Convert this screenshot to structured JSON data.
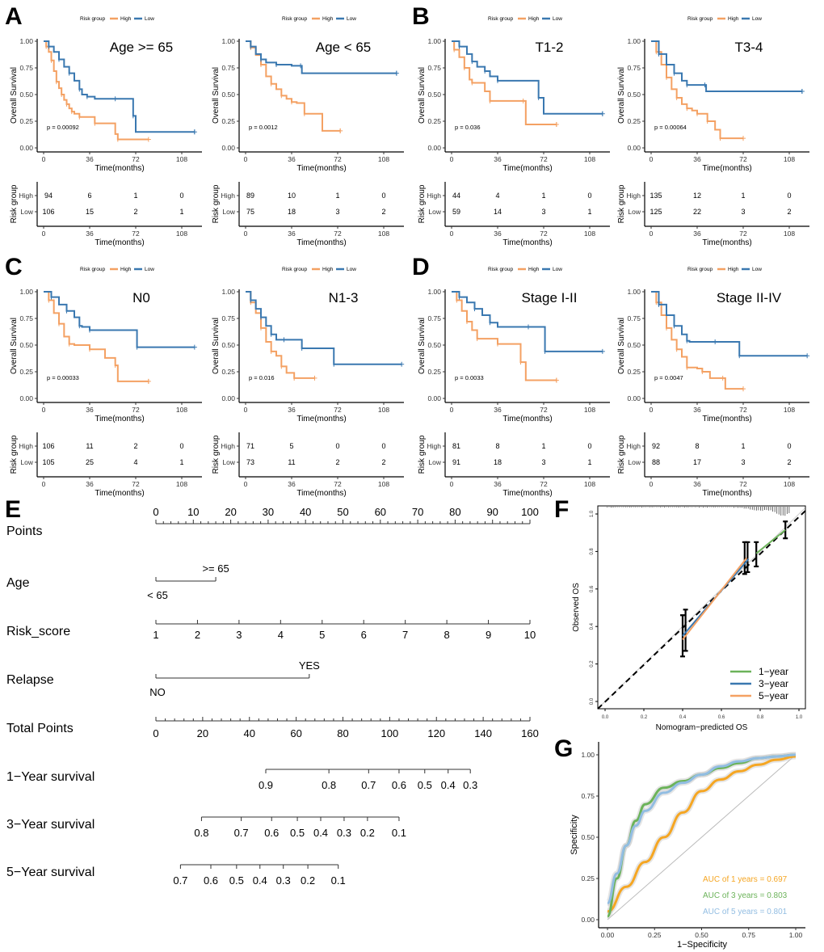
{
  "panel_labels": [
    "A",
    "B",
    "C",
    "D",
    "E",
    "F",
    "G"
  ],
  "colors": {
    "high": "#F4A163",
    "low": "#3A78B0",
    "high_text": "#F4A163",
    "low_text": "#4C86BE",
    "auc1": "#F5A623",
    "auc3": "#6CB35A",
    "auc5": "#92BDE2",
    "grey": "#BBBBBB"
  },
  "km_common": {
    "legend_title": "Risk group",
    "legend_items": [
      "High",
      "Low"
    ],
    "ylabel": "Overall Survival",
    "xlabel": "Time(months)",
    "yticks": [
      "0.00",
      "0.25",
      "0.50",
      "0.75",
      "1.00"
    ],
    "xticks": [
      "0",
      "36",
      "72",
      "108"
    ],
    "risk_ylabel": "Risk group",
    "risk_rows": [
      "High",
      "Low"
    ]
  },
  "chart_data": [
    {
      "type": "line",
      "panel": "A",
      "title": "Age >= 65",
      "p_value": "p = 0.00092",
      "xlim": [
        0,
        116
      ],
      "ylim": [
        0,
        1
      ],
      "series": [
        {
          "name": "High",
          "x": [
            0,
            2,
            4,
            6,
            8,
            10,
            12,
            14,
            16,
            18,
            20,
            22,
            24,
            28,
            32,
            40,
            56,
            58,
            82
          ],
          "y": [
            1,
            0.95,
            0.9,
            0.82,
            0.72,
            0.62,
            0.56,
            0.5,
            0.45,
            0.41,
            0.37,
            0.34,
            0.32,
            0.29,
            0.29,
            0.23,
            0.13,
            0.08,
            0.08
          ]
        },
        {
          "name": "Low",
          "x": [
            0,
            4,
            8,
            12,
            16,
            20,
            24,
            28,
            30,
            34,
            40,
            56,
            66,
            70,
            72,
            118
          ],
          "y": [
            1,
            0.95,
            0.9,
            0.83,
            0.76,
            0.7,
            0.63,
            0.55,
            0.5,
            0.48,
            0.46,
            0.46,
            0.46,
            0.3,
            0.15,
            0.15
          ]
        }
      ],
      "risk_table": {
        "High": [
          94,
          6,
          1,
          0
        ],
        "Low": [
          106,
          15,
          2,
          1
        ]
      }
    },
    {
      "type": "line",
      "panel": "A",
      "title": "Age < 65",
      "p_value": "p = 0.0012",
      "xlim": [
        0,
        116
      ],
      "ylim": [
        0,
        1
      ],
      "series": [
        {
          "name": "High",
          "x": [
            0,
            4,
            8,
            12,
            16,
            20,
            24,
            28,
            32,
            36,
            40,
            46,
            60,
            74
          ],
          "y": [
            1,
            0.94,
            0.87,
            0.78,
            0.67,
            0.6,
            0.55,
            0.49,
            0.46,
            0.43,
            0.42,
            0.32,
            0.16,
            0.16
          ]
        },
        {
          "name": "Low",
          "x": [
            0,
            4,
            8,
            12,
            16,
            24,
            36,
            43,
            44,
            118
          ],
          "y": [
            1,
            0.95,
            0.88,
            0.83,
            0.8,
            0.78,
            0.77,
            0.77,
            0.7,
            0.7
          ]
        }
      ],
      "risk_table": {
        "High": [
          89,
          10,
          1,
          0
        ],
        "Low": [
          75,
          18,
          3,
          2
        ]
      }
    },
    {
      "type": "line",
      "panel": "B",
      "title": "T1-2",
      "p_value": "p = 0.036",
      "xlim": [
        0,
        116
      ],
      "ylim": [
        0,
        1
      ],
      "series": [
        {
          "name": "High",
          "x": [
            0,
            2,
            6,
            10,
            14,
            16,
            26,
            30,
            32,
            56,
            58,
            82
          ],
          "y": [
            1,
            0.92,
            0.85,
            0.75,
            0.64,
            0.61,
            0.53,
            0.44,
            0.44,
            0.44,
            0.22,
            0.22
          ]
        },
        {
          "name": "Low",
          "x": [
            0,
            6,
            12,
            16,
            20,
            26,
            30,
            36,
            60,
            68,
            72,
            118
          ],
          "y": [
            1,
            0.95,
            0.88,
            0.81,
            0.76,
            0.72,
            0.67,
            0.63,
            0.63,
            0.47,
            0.32,
            0.32
          ]
        }
      ],
      "risk_table": {
        "High": [
          44,
          4,
          1,
          0
        ],
        "Low": [
          59,
          14,
          3,
          1
        ]
      }
    },
    {
      "type": "line",
      "panel": "B",
      "title": "T3-4",
      "p_value": "p = 0.00064",
      "xlim": [
        0,
        116
      ],
      "ylim": [
        0,
        1
      ],
      "series": [
        {
          "name": "High",
          "x": [
            0,
            4,
            8,
            12,
            16,
            20,
            24,
            28,
            32,
            36,
            40,
            44,
            50,
            54,
            56,
            72
          ],
          "y": [
            1,
            0.9,
            0.78,
            0.66,
            0.55,
            0.47,
            0.41,
            0.37,
            0.35,
            0.32,
            0.32,
            0.25,
            0.17,
            0.09,
            0.09,
            0.09
          ]
        },
        {
          "name": "Low",
          "x": [
            0,
            6,
            12,
            18,
            24,
            28,
            36,
            42,
            43,
            118
          ],
          "y": [
            1,
            0.88,
            0.78,
            0.7,
            0.63,
            0.59,
            0.59,
            0.59,
            0.53,
            0.53
          ]
        }
      ],
      "risk_table": {
        "High": [
          135,
          12,
          1,
          0
        ],
        "Low": [
          125,
          22,
          3,
          2
        ]
      }
    },
    {
      "type": "line",
      "panel": "C",
      "title": "N0",
      "p_value": "p = 0.00033",
      "xlim": [
        0,
        116
      ],
      "ylim": [
        0,
        1
      ],
      "series": [
        {
          "name": "High",
          "x": [
            0,
            4,
            8,
            12,
            16,
            20,
            24,
            36,
            48,
            56,
            58,
            82
          ],
          "y": [
            1,
            0.92,
            0.8,
            0.7,
            0.58,
            0.51,
            0.5,
            0.46,
            0.38,
            0.31,
            0.16,
            0.16
          ]
        },
        {
          "name": "Low",
          "x": [
            0,
            6,
            12,
            18,
            24,
            28,
            30,
            36,
            72,
            73,
            118
          ],
          "y": [
            1,
            0.95,
            0.88,
            0.82,
            0.76,
            0.68,
            0.67,
            0.64,
            0.64,
            0.48,
            0.48
          ]
        }
      ],
      "risk_table": {
        "High": [
          106,
          11,
          2,
          0
        ],
        "Low": [
          105,
          25,
          4,
          1
        ]
      }
    },
    {
      "type": "line",
      "panel": "C",
      "title": "N1-3",
      "p_value": "p = 0.016",
      "xlim": [
        0,
        116
      ],
      "ylim": [
        0,
        1
      ],
      "series": [
        {
          "name": "High",
          "x": [
            0,
            4,
            8,
            12,
            16,
            20,
            24,
            28,
            32,
            38,
            54
          ],
          "y": [
            1,
            0.9,
            0.8,
            0.66,
            0.53,
            0.44,
            0.4,
            0.3,
            0.24,
            0.19,
            0.19
          ]
        },
        {
          "name": "Low",
          "x": [
            0,
            4,
            8,
            12,
            16,
            20,
            24,
            30,
            42,
            44,
            68,
            69,
            122
          ],
          "y": [
            1,
            0.92,
            0.84,
            0.76,
            0.68,
            0.6,
            0.55,
            0.55,
            0.55,
            0.47,
            0.47,
            0.32,
            0.32
          ]
        }
      ],
      "risk_table": {
        "High": [
          71,
          5,
          0,
          0
        ],
        "Low": [
          73,
          11,
          2,
          2
        ]
      }
    },
    {
      "type": "line",
      "panel": "D",
      "title": "Stage I-II",
      "p_value": "p = 0.0033",
      "xlim": [
        0,
        116
      ],
      "ylim": [
        0,
        1
      ],
      "series": [
        {
          "name": "High",
          "x": [
            0,
            4,
            8,
            12,
            16,
            20,
            34,
            36,
            52,
            54,
            58,
            82
          ],
          "y": [
            1,
            0.92,
            0.82,
            0.72,
            0.64,
            0.56,
            0.56,
            0.51,
            0.51,
            0.34,
            0.17,
            0.17
          ]
        },
        {
          "name": "Low",
          "x": [
            0,
            6,
            12,
            18,
            24,
            30,
            36,
            60,
            72,
            73,
            118
          ],
          "y": [
            1,
            0.95,
            0.9,
            0.84,
            0.78,
            0.71,
            0.67,
            0.67,
            0.67,
            0.44,
            0.44
          ]
        }
      ],
      "risk_table": {
        "High": [
          81,
          8,
          1,
          0
        ],
        "Low": [
          91,
          18,
          3,
          1
        ]
      }
    },
    {
      "type": "line",
      "panel": "D",
      "title": "Stage II-IV",
      "p_value": "p = 0.0047",
      "xlim": [
        0,
        116
      ],
      "ylim": [
        0,
        1
      ],
      "series": [
        {
          "name": "High",
          "x": [
            0,
            4,
            8,
            12,
            16,
            20,
            24,
            28,
            36,
            40,
            46,
            56,
            58,
            72
          ],
          "y": [
            1,
            0.9,
            0.78,
            0.66,
            0.55,
            0.46,
            0.39,
            0.29,
            0.28,
            0.25,
            0.19,
            0.19,
            0.09,
            0.09
          ]
        },
        {
          "name": "Low",
          "x": [
            0,
            6,
            12,
            18,
            24,
            28,
            30,
            50,
            68,
            69,
            122
          ],
          "y": [
            1,
            0.88,
            0.78,
            0.68,
            0.6,
            0.54,
            0.53,
            0.53,
            0.53,
            0.4,
            0.4
          ]
        }
      ],
      "risk_table": {
        "High": [
          92,
          8,
          1,
          0
        ],
        "Low": [
          88,
          17,
          3,
          2
        ]
      }
    },
    {
      "type": "nomogram",
      "panel": "E",
      "rows": [
        {
          "label": "Points",
          "kind": "scale",
          "range": [
            0,
            100
          ],
          "ticks": [
            "0",
            "10",
            "20",
            "30",
            "40",
            "50",
            "60",
            "70",
            "80",
            "90",
            "100"
          ]
        },
        {
          "label": "Age",
          "kind": "categorical",
          "levels": [
            {
              "name": "< 65",
              "points": 0
            },
            {
              "name": ">= 65",
              "points": 16
            }
          ]
        },
        {
          "label": "Risk_score",
          "kind": "scale",
          "range": [
            1,
            10
          ],
          "ticks": [
            "1",
            "2",
            "3",
            "4",
            "5",
            "6",
            "7",
            "8",
            "9",
            "10"
          ]
        },
        {
          "label": "Relapse",
          "kind": "categorical",
          "levels": [
            {
              "name": "NO",
              "points": 0
            },
            {
              "name": "YES",
              "points": 41
            }
          ]
        },
        {
          "label": "Total Points",
          "kind": "scale",
          "range": [
            0,
            160
          ],
          "ticks": [
            "0",
            "20",
            "40",
            "60",
            "80",
            "100",
            "120",
            "140",
            "160"
          ]
        },
        {
          "label": "1−Year survival",
          "kind": "prob",
          "ticks": [
            {
              "v": "0.9",
              "tp": 47
            },
            {
              "v": "0.8",
              "tp": 74
            },
            {
              "v": "0.7",
              "tp": 91
            },
            {
              "v": "0.6",
              "tp": 104
            },
            {
              "v": "0.5",
              "tp": 115
            },
            {
              "v": "0.4",
              "tp": 125
            },
            {
              "v": "0.3",
              "tp": 134.5
            }
          ]
        },
        {
          "label": "3−Year survival",
          "kind": "prob",
          "ticks": [
            {
              "v": "0.8",
              "tp": 19.5
            },
            {
              "v": "0.7",
              "tp": 36.5
            },
            {
              "v": "0.6",
              "tp": 49.5
            },
            {
              "v": "0.5",
              "tp": 60.5
            },
            {
              "v": "0.4",
              "tp": 70.5
            },
            {
              "v": "0.3",
              "tp": 80.5
            },
            {
              "v": "0.2",
              "tp": 90.5
            },
            {
              "v": "0.1",
              "tp": 104
            }
          ]
        },
        {
          "label": "5−Year survival",
          "kind": "prob",
          "ticks": [
            {
              "v": "0.7",
              "tp": 10.5
            },
            {
              "v": "0.6",
              "tp": 23.5
            },
            {
              "v": "0.5",
              "tp": 34.5
            },
            {
              "v": "0.4",
              "tp": 44.5
            },
            {
              "v": "0.3",
              "tp": 54.5
            },
            {
              "v": "0.2",
              "tp": 65
            },
            {
              "v": "0.1",
              "tp": 78
            }
          ]
        }
      ]
    },
    {
      "type": "line",
      "panel": "F",
      "title": "",
      "xlabel": "Nomogram−predicted OS",
      "ylabel": "Observed OS",
      "xlim": [
        0,
        1
      ],
      "ylim": [
        0,
        1
      ],
      "xticks": [
        "0.0",
        "0.2",
        "0.4",
        "0.6",
        "0.8",
        "1.0"
      ],
      "yticks": [
        "0.0",
        "0.2",
        "0.4",
        "0.6",
        "0.8",
        "1.0"
      ],
      "series": [
        {
          "name": "1−year",
          "x": [
            0.78,
            0.93
          ],
          "y": [
            0.79,
            0.915
          ]
        },
        {
          "name": "3−year",
          "x": [
            0.4,
            0.74
          ],
          "y": [
            0.35,
            0.76
          ]
        },
        {
          "name": "5−year",
          "x": [
            0.4,
            0.73
          ],
          "y": [
            0.33,
            0.765
          ]
        }
      ],
      "reference": "diagonal dashed",
      "legend": [
        "1−year",
        "3−year",
        "5−year"
      ],
      "legend_position": "bottom-right"
    },
    {
      "type": "line",
      "panel": "G",
      "title": "",
      "xlabel": "1−Specificity",
      "ylabel": "Specificity",
      "xlim": [
        0,
        1
      ],
      "ylim": [
        0,
        1
      ],
      "xticks": [
        "0.00",
        "0.25",
        "0.50",
        "0.75",
        "1.00"
      ],
      "yticks": [
        "0.00",
        "0.25",
        "0.50",
        "0.75",
        "1.00"
      ],
      "series": [
        {
          "name": "AUC of 1 years",
          "auc": "0.697",
          "x": [
            0,
            0.1,
            0.2,
            0.3,
            0.4,
            0.5,
            0.6,
            0.7,
            0.8,
            0.9,
            1.0
          ],
          "y": [
            0.05,
            0.2,
            0.35,
            0.5,
            0.65,
            0.78,
            0.85,
            0.9,
            0.94,
            0.97,
            0.99
          ]
        },
        {
          "name": "AUC of 3 years",
          "auc": "0.803",
          "x": [
            0,
            0.05,
            0.1,
            0.15,
            0.2,
            0.3,
            0.4,
            0.5,
            0.6,
            0.7,
            0.8,
            0.9,
            1.0
          ],
          "y": [
            0.02,
            0.25,
            0.45,
            0.6,
            0.7,
            0.8,
            0.84,
            0.88,
            0.92,
            0.95,
            0.98,
            0.99,
            1.0
          ]
        },
        {
          "name": "AUC of 5 years",
          "auc": "0.801",
          "x": [
            0,
            0.05,
            0.1,
            0.15,
            0.2,
            0.3,
            0.4,
            0.5,
            0.6,
            0.7,
            0.8,
            0.9,
            1.0
          ],
          "y": [
            0.1,
            0.28,
            0.45,
            0.57,
            0.66,
            0.77,
            0.83,
            0.88,
            0.93,
            0.96,
            0.98,
            0.99,
            1.0
          ]
        }
      ],
      "legend": [
        "AUC of 1 years =  0.697",
        "AUC of 3 years =  0.803",
        "AUC of 5 years =  0.801"
      ],
      "legend_position": "bottom-right"
    }
  ]
}
